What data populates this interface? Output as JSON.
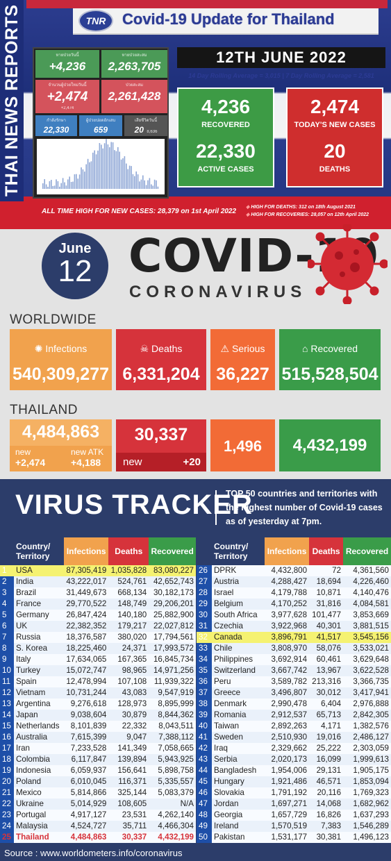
{
  "header": {
    "logo": "TNR",
    "title": "Covid-19 Update for Thailand",
    "sidebar": "THAI NEWS REPORTS",
    "date": "12TH JUNE 2022",
    "rolling": "14 Day Rolling Average = 3,015 | 7 Day Rolling Average = 2,581",
    "recovered_value": "4,236",
    "recovered_label": "RECOVERED",
    "active_value": "22,330",
    "active_label": "ACTIVE CASES",
    "new_cases_value": "2,474",
    "new_cases_label": "TODAY'S NEW CASES",
    "deaths_value": "20",
    "deaths_label": "DEATHS",
    "all_time_high": "ALL TIME HIGH FOR NEW CASES: 28,379 on 1st April 2022",
    "high_deaths": "HIGH FOR DEATHS: 312 on 18th August 2021",
    "high_recoveries": "HIGH FOR RECOVERIES: 28,057 on 12th April 2022"
  },
  "dashboard": {
    "t1_label": "หายป่วยวันนี้",
    "t1_value": "+4,236",
    "t2_label": "หายป่วยสะสม",
    "t2_value": "2,263,705",
    "t3_label": "จำนวนผู้ป่วยใหม่วันนี้",
    "t3_value": "+2,474",
    "t3_sub": "+2,474",
    "t4_label": "ป่วยสะสม",
    "t4_value": "2,261,428",
    "t5_label": "กำลังรักษา",
    "t5_value": "22,330",
    "t6_label": "ผู้ป่วยปอดอักเสบ",
    "t6_value": "659",
    "t7_label": "เสียชีวิตวันนี้",
    "t7_value": "20",
    "t7_sub": "8,636"
  },
  "banner": {
    "month": "June",
    "day": "12",
    "covid": "COVID-19",
    "corona": "CORONAVIRUS"
  },
  "worldwide": {
    "heading": "WORLDWIDE",
    "infections_label": "Infections",
    "infections": "540,309,277",
    "deaths_label": "Deaths",
    "deaths": "6,331,204",
    "serious_label": "Serious",
    "serious": "36,227",
    "recovered_label": "Recovered",
    "recovered": "515,528,504"
  },
  "thailand": {
    "heading": "THAILAND",
    "infections": "4,484,863",
    "new_label": "new",
    "new_value": "+2,474",
    "atk_label": "new ATK",
    "atk_value": "+4,188",
    "deaths": "30,337",
    "deaths_new_label": "new",
    "deaths_new_value": "+20",
    "serious": "1,496",
    "recovered": "4,432,199"
  },
  "colors": {
    "orange": "#f1a24d",
    "red": "#d6333b",
    "serious": "#f26b36",
    "green": "#3a9c49",
    "navy": "#2c3d6a",
    "highlight": "#f5f271"
  },
  "tracker": {
    "title": "VIRUS TRACKER",
    "description_bold": "TOP 50",
    "description": " countries and territories with the highest number of Covid-19 cases as of yesterday at 7pm.",
    "col_country": "Country/ Territory",
    "col_infections": "Infections",
    "col_deaths": "Deaths",
    "col_recovered": "Recovered",
    "left": [
      [
        "1",
        "USA",
        "87,305,419",
        "1,035,828",
        "83,080,227"
      ],
      [
        "2",
        "India",
        "43,222,017",
        "524,761",
        "42,652,743"
      ],
      [
        "3",
        "Brazil",
        "31,449,673",
        "668,134",
        "30,182,173"
      ],
      [
        "4",
        "France",
        "29,770,522",
        "148,749",
        "29,206,201"
      ],
      [
        "5",
        "Germany",
        "26,847,424",
        "140,180",
        "25,882,900"
      ],
      [
        "6",
        "UK",
        "22,382,352",
        "179,217",
        "22,027,812"
      ],
      [
        "7",
        "Russia",
        "18,376,587",
        "380,020",
        "17,794,561"
      ],
      [
        "8",
        "S. Korea",
        "18,225,460",
        "24,371",
        "17,993,572"
      ],
      [
        "9",
        "Italy",
        "17,634,065",
        "167,365",
        "16,845,734"
      ],
      [
        "10",
        "Turkey",
        "15,072,747",
        "98,965",
        "14,971,256"
      ],
      [
        "11",
        "Spain",
        "12,478,994",
        "107,108",
        "11,939,322"
      ],
      [
        "12",
        "Vietnam",
        "10,731,244",
        "43,083",
        "9,547,919"
      ],
      [
        "13",
        "Argentina",
        "9,276,618",
        "128,973",
        "8,895,999"
      ],
      [
        "14",
        "Japan",
        "9,038,604",
        "30,879",
        "8,844,362"
      ],
      [
        "15",
        "Netherlands",
        "8,101,839",
        "22,332",
        "8,043,511"
      ],
      [
        "16",
        "Australia",
        "7,615,399",
        "9,047",
        "7,388,112"
      ],
      [
        "17",
        "Iran",
        "7,233,528",
        "141,349",
        "7,058,665"
      ],
      [
        "18",
        "Colombia",
        "6,117,847",
        "139,894",
        "5,943,925"
      ],
      [
        "19",
        "Indonesia",
        "6,059,937",
        "156,641",
        "5,898,758"
      ],
      [
        "20",
        "Poland",
        "6,010,045",
        "116,371",
        "5,335,557"
      ],
      [
        "21",
        "Mexico",
        "5,814,866",
        "325,144",
        "5,083,379"
      ],
      [
        "22",
        "Ukraine",
        "5,014,929",
        "108,605",
        "N/A"
      ],
      [
        "23",
        "Portugal",
        "4,917,127",
        "23,531",
        "4,262,140"
      ],
      [
        "24",
        "Malaysia",
        "4,524,727",
        "35,711",
        "4,466,304"
      ],
      [
        "25",
        "Thailand",
        "4,484,863",
        "30,337",
        "4,432,199"
      ]
    ],
    "right": [
      [
        "26",
        "DPRK",
        "4,432,800",
        "72",
        "4,361,560"
      ],
      [
        "27",
        "Austria",
        "4,288,427",
        "18,694",
        "4,226,460"
      ],
      [
        "28",
        "Israel",
        "4,179,788",
        "10,871",
        "4,140,476"
      ],
      [
        "29",
        "Belgium",
        "4,170,252",
        "31,816",
        "4,084,581"
      ],
      [
        "30",
        "South Africa",
        "3,977,628",
        "101,477",
        "3,853,669"
      ],
      [
        "31",
        "Czechia",
        "3,922,968",
        "40,301",
        "3,881,515"
      ],
      [
        "32",
        "Canada",
        "3,896,791",
        "41,517",
        "3,545,156"
      ],
      [
        "33",
        "Chile",
        "3,808,970",
        "58,076",
        "3,533,021"
      ],
      [
        "34",
        "Philippines",
        "3,692,914",
        "60,461",
        "3,629,648"
      ],
      [
        "35",
        "Switzerland",
        "3,667,742",
        "13,967",
        "3,622,528"
      ],
      [
        "36",
        "Peru",
        "3,589,782",
        "213,316",
        "3,366,735"
      ],
      [
        "37",
        "Greece",
        "3,496,807",
        "30,012",
        "3,417,941"
      ],
      [
        "38",
        "Denmark",
        "2,990,478",
        "6,404",
        "2,976,888"
      ],
      [
        "39",
        "Romania",
        "2,912,537",
        "65,713",
        "2,842,305"
      ],
      [
        "40",
        "Taiwan",
        "2,892,263",
        "4,171",
        "1,382,576"
      ],
      [
        "41",
        "Sweden",
        "2,510,930",
        "19,016",
        "2,486,127"
      ],
      [
        "42",
        "Iraq",
        "2,329,662",
        "25,222",
        "2,303,059"
      ],
      [
        "43",
        "Serbia",
        "2,020,173",
        "16,099",
        "1,999,613"
      ],
      [
        "44",
        "Bangladesh",
        "1,954,006",
        "29,131",
        "1,905,175"
      ],
      [
        "45",
        "Hungary",
        "1,921,486",
        "46,571",
        "1,853,094"
      ],
      [
        "46",
        "Slovakia",
        "1,791,192",
        "20,116",
        "1,769,323"
      ],
      [
        "47",
        "Jordan",
        "1,697,271",
        "14,068",
        "1,682,962"
      ],
      [
        "48",
        "Georgia",
        "1,657,729",
        "16,826",
        "1,637,293"
      ],
      [
        "49",
        "Ireland",
        "1,570,519",
        "7,383",
        "1,546,289"
      ],
      [
        "50",
        "Pakistan",
        "1,531,177",
        "30,381",
        "1,496,123"
      ]
    ]
  },
  "source": "Source : www.worldometers.info/coronavirus"
}
